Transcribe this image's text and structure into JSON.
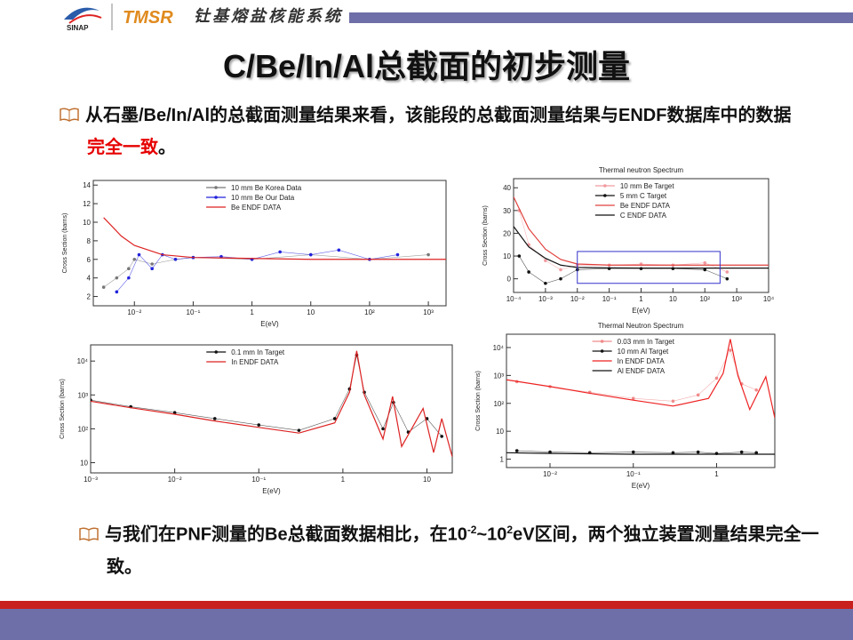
{
  "header": {
    "logo_text": "SINAP",
    "brand": "TMSR",
    "subtitle": "钍基熔盐核能系统"
  },
  "title": "C/Be/In/Al总截面的初步测量",
  "bullets": [
    [
      {
        "text": "从石墨/Be/In/Al的总截面测量结果来看，该能段的总截面测量结果与ENDF数据库中的数据"
      },
      {
        "text": "完全一致",
        "style": "red"
      },
      {
        "text": "。"
      }
    ],
    [
      {
        "text": "与我们在PNF测量的Be总截面数据相比，在10"
      },
      {
        "text": "-2",
        "style": "sup"
      },
      {
        "text": "~10"
      },
      {
        "text": "2",
        "style": "sup"
      },
      {
        "text": "eV区间，两个独立装置测量结果完全一致。"
      }
    ]
  ],
  "figures": [
    {
      "type": "line",
      "xlabel": "E(eV)",
      "ylabel": "Cross Section (barns)",
      "xlog": true,
      "ylog": false,
      "xlim": [
        0.002,
        2000
      ],
      "ylim": [
        1,
        14.5
      ],
      "xticks": [
        {
          "value": 0.01,
          "label": "10⁻²"
        },
        {
          "value": 0.1,
          "label": "10⁻¹"
        },
        {
          "value": 1,
          "label": "1"
        },
        {
          "value": 10,
          "label": "10"
        },
        {
          "value": 100,
          "label": "10²"
        },
        {
          "value": 1000,
          "label": "10³"
        }
      ],
      "yticks": [
        2,
        4,
        6,
        8,
        10,
        12,
        14
      ],
      "series": [
        {
          "name": "10 mm Be Korea Data",
          "color": "#777777",
          "style": "points",
          "x": [
            0.003,
            0.005,
            0.008,
            0.01,
            0.02,
            0.05,
            0.1,
            1,
            10,
            100,
            1000
          ],
          "values": [
            3,
            4,
            5,
            6,
            5.5,
            6,
            6.2,
            6,
            6.5,
            6,
            6.5
          ]
        },
        {
          "name": "10 mm Be Our Data",
          "color": "#2222dd",
          "style": "points",
          "x": [
            0.005,
            0.008,
            0.012,
            0.02,
            0.03,
            0.05,
            0.1,
            0.3,
            1,
            3,
            10,
            30,
            100,
            300
          ],
          "values": [
            2.5,
            4,
            6.5,
            5,
            6.5,
            6,
            6.2,
            6.3,
            6,
            6.8,
            6.5,
            7,
            6,
            6.5
          ]
        },
        {
          "name": "Be ENDF DATA",
          "color": "#dd2222",
          "style": "line",
          "x": [
            0.003,
            0.006,
            0.01,
            0.03,
            0.1,
            1,
            10,
            100,
            1000,
            2000
          ],
          "values": [
            10.5,
            8.5,
            7.5,
            6.5,
            6.2,
            6.1,
            6,
            6,
            6,
            6
          ]
        }
      ]
    },
    {
      "type": "line",
      "title": "Thermal neutron Spectrum",
      "xlabel": "E(eV)",
      "ylabel": "Cross Section (barns)",
      "xlog": true,
      "ylog": false,
      "xlim": [
        0.0001,
        10000
      ],
      "ylim": [
        -6,
        44
      ],
      "xticks": [
        {
          "value": 0.0001,
          "label": "10⁻⁴"
        },
        {
          "value": 0.001,
          "label": "10⁻³"
        },
        {
          "value": 0.01,
          "label": "10⁻²"
        },
        {
          "value": 0.1,
          "label": "10⁻¹"
        },
        {
          "value": 1,
          "label": "1"
        },
        {
          "value": 10,
          "label": "10"
        },
        {
          "value": 100,
          "label": "10²"
        },
        {
          "value": 1000,
          "label": "10³"
        },
        {
          "value": 10000,
          "label": "10⁴"
        }
      ],
      "yticks": [
        0,
        10,
        20,
        30,
        40
      ],
      "series": [
        {
          "name": "10 mm Be Target",
          "color": "#f29aa0",
          "style": "points",
          "x": [
            0.00015,
            0.0003,
            0.001,
            0.003,
            0.01,
            0.1,
            1,
            10,
            100,
            500
          ],
          "values": [
            30,
            15,
            8,
            4,
            6,
            6,
            6.5,
            6,
            7,
            3
          ]
        },
        {
          "name": "5 mm C Target",
          "color": "#111111",
          "style": "points",
          "x": [
            0.00015,
            0.0003,
            0.001,
            0.003,
            0.01,
            0.1,
            1,
            10,
            100,
            500
          ],
          "values": [
            10,
            3,
            -2,
            0,
            4,
            4.5,
            4.5,
            4.5,
            4,
            0
          ]
        },
        {
          "name": "Be ENDF DATA",
          "color": "#e0403c",
          "style": "line",
          "x": [
            0.0001,
            0.0003,
            0.001,
            0.003,
            0.01,
            0.1,
            1,
            10,
            100,
            1000,
            10000
          ],
          "values": [
            36,
            22,
            13,
            8.5,
            6.5,
            6,
            6,
            6,
            6,
            6,
            6
          ]
        },
        {
          "name": "C ENDF DATA",
          "color": "#111111",
          "style": "line",
          "x": [
            0.0001,
            0.0003,
            0.001,
            0.003,
            0.01,
            0.1,
            1,
            10,
            100,
            1000,
            10000
          ],
          "values": [
            23,
            14,
            9,
            6,
            5,
            4.8,
            4.7,
            4.7,
            4.7,
            4.7,
            4.7
          ]
        }
      ]
    },
    {
      "type": "line",
      "xlabel": "E(eV)",
      "ylabel": "Cross Section (barns)",
      "xlog": true,
      "ylog": true,
      "xlim": [
        0.001,
        20
      ],
      "ylim": [
        5,
        30000
      ],
      "xticks": [
        {
          "value": 0.001,
          "label": "10⁻³"
        },
        {
          "value": 0.01,
          "label": "10⁻²"
        },
        {
          "value": 0.1,
          "label": "10⁻¹"
        },
        {
          "value": 1,
          "label": "1"
        },
        {
          "value": 10,
          "label": "10"
        }
      ],
      "yticks": [
        10,
        {
          "value": 100,
          "label": "10²"
        },
        {
          "value": 1000,
          "label": "10³"
        },
        {
          "value": 10000,
          "label": "10⁴"
        }
      ],
      "series": [
        {
          "name": "0.1 mm In Target",
          "color": "#111111",
          "style": "points",
          "x": [
            0.001,
            0.003,
            0.01,
            0.03,
            0.1,
            0.3,
            0.8,
            1.2,
            1.46,
            1.8,
            3,
            4,
            6,
            10,
            15
          ],
          "values": [
            700,
            450,
            300,
            200,
            130,
            90,
            200,
            1500,
            15000,
            1200,
            100,
            600,
            80,
            200,
            60
          ]
        },
        {
          "name": "In ENDF DATA",
          "color": "#dd2222",
          "style": "line",
          "x": [
            0.001,
            0.003,
            0.01,
            0.03,
            0.1,
            0.3,
            0.8,
            1.2,
            1.46,
            1.8,
            3,
            3.9,
            5,
            9,
            12,
            15,
            20
          ],
          "values": [
            650,
            420,
            270,
            170,
            110,
            75,
            150,
            1200,
            20000,
            1000,
            50,
            900,
            30,
            400,
            20,
            200,
            15
          ]
        }
      ]
    },
    {
      "type": "line",
      "title": "Thermal Neutron Spectrum",
      "xlabel": "E(eV)",
      "ylabel": "Cross Section (barns)",
      "xlog": true,
      "ylog": true,
      "xlim": [
        0.003,
        5
      ],
      "ylim": [
        0.5,
        30000
      ],
      "xticks": [
        {
          "value": 0.01,
          "label": "10⁻²"
        },
        {
          "value": 0.1,
          "label": "10⁻¹"
        },
        {
          "value": 1,
          "label": "1"
        }
      ],
      "yticks": [
        1,
        10,
        {
          "value": 100,
          "label": "10²"
        },
        {
          "value": 1000,
          "label": "10³"
        },
        {
          "value": 10000,
          "label": "10⁴"
        }
      ],
      "series": [
        {
          "name": "0.03 mm In Target",
          "color": "#f08a8a",
          "style": "points",
          "x": [
            0.004,
            0.01,
            0.03,
            0.1,
            0.3,
            0.6,
            1,
            1.46,
            2,
            3
          ],
          "values": [
            600,
            400,
            250,
            150,
            120,
            200,
            800,
            8000,
            500,
            300
          ]
        },
        {
          "name": "10 mm Al Target",
          "color": "#111111",
          "style": "points",
          "x": [
            0.004,
            0.01,
            0.03,
            0.1,
            0.3,
            0.6,
            1,
            2,
            3
          ],
          "values": [
            2,
            1.8,
            1.7,
            1.8,
            1.7,
            1.8,
            1.6,
            1.8,
            1.7
          ]
        },
        {
          "name": "In ENDF DATA",
          "color": "#ee2222",
          "style": "line",
          "x": [
            0.003,
            0.01,
            0.03,
            0.1,
            0.3,
            0.8,
            1.2,
            1.46,
            1.8,
            2.5,
            3.9,
            5
          ],
          "values": [
            700,
            400,
            230,
            130,
            80,
            150,
            1200,
            20000,
            1000,
            60,
            900,
            30
          ]
        },
        {
          "name": "Al ENDF DATA",
          "color": "#111111",
          "style": "line",
          "x": [
            0.003,
            0.01,
            0.1,
            1,
            5
          ],
          "values": [
            1.7,
            1.6,
            1.5,
            1.5,
            1.5
          ]
        }
      ]
    }
  ]
}
